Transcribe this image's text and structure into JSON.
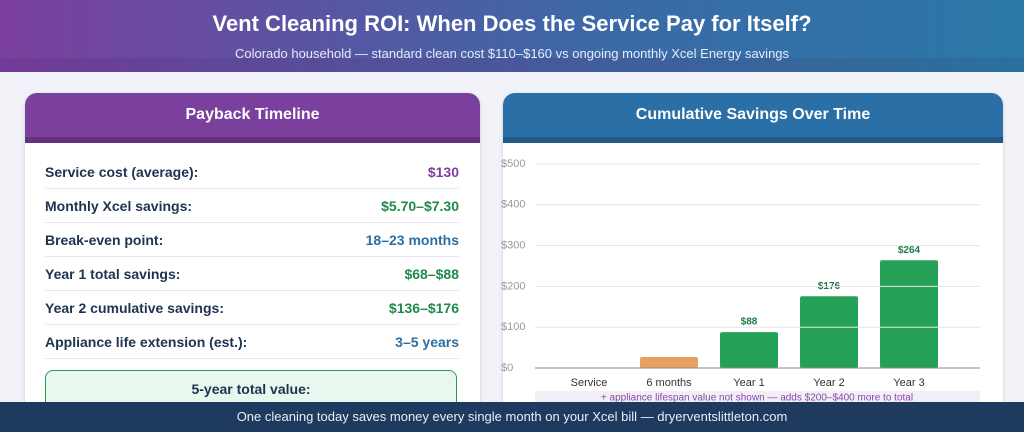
{
  "header": {
    "title": "Vent Cleaning ROI: When Does the Service Pay for Itself?",
    "subtitle": "Colorado household — standard clean cost $110–$160 vs ongoing monthly Xcel Energy savings"
  },
  "payback": {
    "title": "Payback Timeline",
    "rows": [
      [
        "Service cost (average):",
        "$130"
      ],
      [
        "Monthly Xcel savings:",
        "$5.70–$7.30"
      ],
      [
        "Break-even point:",
        "18–23 months"
      ],
      [
        "Year 1 total savings:",
        "$68–$88"
      ],
      [
        "Year 2 cumulative savings:",
        "$136–$176"
      ],
      [
        "Appliance life extension (est.):",
        "3–5 years"
      ]
    ],
    "total_label": "5-year total value:"
  },
  "chart_data": {
    "type": "bar",
    "title": "Cumulative Savings Over Time",
    "categories": [
      "Service",
      "6 months",
      "Year 1",
      "Year 2",
      "Year 3"
    ],
    "values": [
      0,
      27,
      88,
      176,
      264
    ],
    "value_labels": [
      null,
      null,
      "$88",
      "$176",
      "$264"
    ],
    "colors": [
      "#e8a060",
      "#e8a060",
      "#24a157",
      "#24a157",
      "#24a157"
    ],
    "ylim": [
      0,
      500
    ],
    "yticks": [
      {
        "value": 0,
        "label": "$0"
      },
      {
        "value": 100,
        "label": "$100"
      },
      {
        "value": 200,
        "label": "$200"
      },
      {
        "value": 300,
        "label": "$300"
      },
      {
        "value": 400,
        "label": "$400"
      },
      {
        "value": 500,
        "label": "$500"
      }
    ],
    "grid": true,
    "note": "+ appliance lifespan value not shown — adds $200–$400 more to total"
  },
  "footer": "One cleaning today saves money every single month on your Xcel bill — dryerventslittleton.com"
}
